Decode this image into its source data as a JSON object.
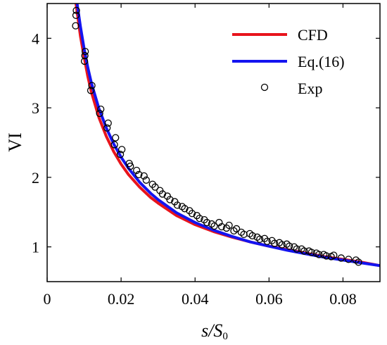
{
  "chart_data": {
    "type": "line",
    "title": "",
    "xlabel": {
      "main": "s/S",
      "sub": "0"
    },
    "ylabel": "VI",
    "xlim": [
      0,
      0.09
    ],
    "ylim": [
      0.5,
      4.5
    ],
    "xticks": [
      0,
      0.02,
      0.04,
      0.06,
      0.08
    ],
    "xtick_labels": [
      "0",
      "0.02",
      "0.04",
      "0.06",
      "0.08"
    ],
    "yticks": [
      1,
      2,
      3,
      4
    ],
    "ytick_labels": [
      "1",
      "2",
      "3",
      "4"
    ],
    "grid": false,
    "legend_position": "top-right",
    "series": [
      {
        "name": "CFD",
        "kind": "line",
        "color": "#e8141c",
        "x": [
          0.0078,
          0.009,
          0.01,
          0.011,
          0.012,
          0.014,
          0.016,
          0.018,
          0.02,
          0.022,
          0.025,
          0.028,
          0.03,
          0.035,
          0.04,
          0.045,
          0.05,
          0.055,
          0.06,
          0.065,
          0.07,
          0.075,
          0.08,
          0.085,
          0.09
        ],
        "y": [
          4.5,
          4.03,
          3.73,
          3.45,
          3.22,
          2.86,
          2.59,
          2.37,
          2.19,
          2.04,
          1.86,
          1.71,
          1.63,
          1.45,
          1.32,
          1.22,
          1.14,
          1.07,
          1.01,
          0.96,
          0.91,
          0.86,
          0.82,
          0.78,
          0.73
        ]
      },
      {
        "name": "Eq.(16)",
        "kind": "line",
        "color": "#1414f0",
        "x": [
          0.0081,
          0.009,
          0.01,
          0.011,
          0.012,
          0.014,
          0.016,
          0.018,
          0.02,
          0.022,
          0.025,
          0.028,
          0.03,
          0.035,
          0.04,
          0.045,
          0.05,
          0.055,
          0.06,
          0.065,
          0.07,
          0.075,
          0.08,
          0.085,
          0.09
        ],
        "y": [
          4.5,
          4.17,
          3.85,
          3.58,
          3.35,
          2.99,
          2.71,
          2.48,
          2.29,
          2.13,
          1.93,
          1.77,
          1.68,
          1.49,
          1.35,
          1.24,
          1.15,
          1.07,
          1.01,
          0.95,
          0.9,
          0.85,
          0.81,
          0.77,
          0.73
        ]
      },
      {
        "name": "Exp",
        "kind": "scatter",
        "color": "#000000",
        "x": [
          0.0077,
          0.0078,
          0.0079,
          0.0101,
          0.0102,
          0.0103,
          0.0118,
          0.0121,
          0.0142,
          0.0145,
          0.0162,
          0.0165,
          0.0182,
          0.0185,
          0.0198,
          0.0202,
          0.0222,
          0.0225,
          0.0242,
          0.0248,
          0.0262,
          0.0268,
          0.0285,
          0.0292,
          0.0305,
          0.0312,
          0.0325,
          0.0332,
          0.0345,
          0.0352,
          0.0365,
          0.0372,
          0.0385,
          0.0392,
          0.0405,
          0.0412,
          0.0425,
          0.0432,
          0.0445,
          0.0452,
          0.0465,
          0.0472,
          0.0485,
          0.0492,
          0.0505,
          0.0512,
          0.0525,
          0.0532,
          0.0548,
          0.0555,
          0.0568,
          0.0575,
          0.0588,
          0.0595,
          0.0608,
          0.0615,
          0.0628,
          0.0635,
          0.0648,
          0.0655,
          0.0668,
          0.0675,
          0.0688,
          0.0695,
          0.0708,
          0.0715,
          0.0728,
          0.0735,
          0.0748,
          0.0755,
          0.0768,
          0.0775,
          0.0795,
          0.0815,
          0.0835,
          0.0842
        ],
        "y": [
          4.18,
          4.33,
          4.4,
          3.67,
          3.75,
          3.81,
          3.25,
          3.32,
          2.92,
          2.98,
          2.71,
          2.78,
          2.47,
          2.57,
          2.33,
          2.4,
          2.2,
          2.16,
          2.1,
          2.04,
          2.02,
          1.96,
          1.9,
          1.86,
          1.81,
          1.76,
          1.73,
          1.68,
          1.65,
          1.6,
          1.58,
          1.55,
          1.52,
          1.48,
          1.45,
          1.41,
          1.39,
          1.35,
          1.33,
          1.3,
          1.35,
          1.29,
          1.27,
          1.31,
          1.23,
          1.26,
          1.21,
          1.18,
          1.19,
          1.16,
          1.14,
          1.11,
          1.12,
          1.08,
          1.09,
          1.05,
          1.06,
          1.03,
          1.04,
          1.01,
          1.0,
          0.97,
          0.97,
          0.94,
          0.94,
          0.92,
          0.91,
          0.89,
          0.89,
          0.87,
          0.86,
          0.88,
          0.84,
          0.82,
          0.81,
          0.78
        ]
      }
    ]
  }
}
